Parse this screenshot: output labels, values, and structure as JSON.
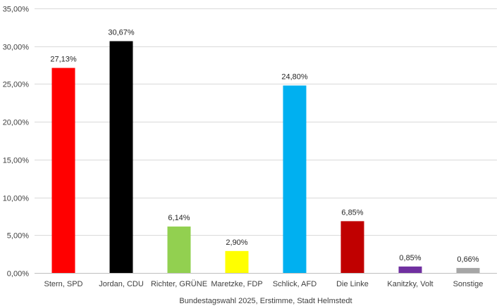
{
  "chart_data": {
    "type": "bar",
    "xlabel": "Bundestagswahl 2025, Erstimme, Stadt Helmstedt",
    "ylabel": "",
    "ylim": [
      0,
      35
    ],
    "yticks": [
      "0,00%",
      "5,00%",
      "10,00%",
      "15,00%",
      "20,00%",
      "25,00%",
      "30,00%",
      "35,00%"
    ],
    "ytick_values": [
      0,
      5,
      10,
      15,
      20,
      25,
      30,
      35
    ],
    "grid": true,
    "categories": [
      "Stern, SPD",
      "Jordan, CDU",
      "Richter, GRÜNE",
      "Maretzke, FDP",
      "Schlick, AFD",
      "Die Linke",
      "Kanitzky, Volt",
      "Sonstige"
    ],
    "values": [
      27.13,
      30.67,
      6.14,
      2.9,
      24.8,
      6.85,
      0.85,
      0.66
    ],
    "data_labels": [
      "27,13%",
      "30,67%",
      "6,14%",
      "2,90%",
      "24,80%",
      "6,85%",
      "0,85%",
      "0,66%"
    ],
    "colors": [
      "#ff0000",
      "#000000",
      "#92d050",
      "#ffff00",
      "#00b0f0",
      "#c00000",
      "#7030a0",
      "#a6a6a6"
    ]
  }
}
